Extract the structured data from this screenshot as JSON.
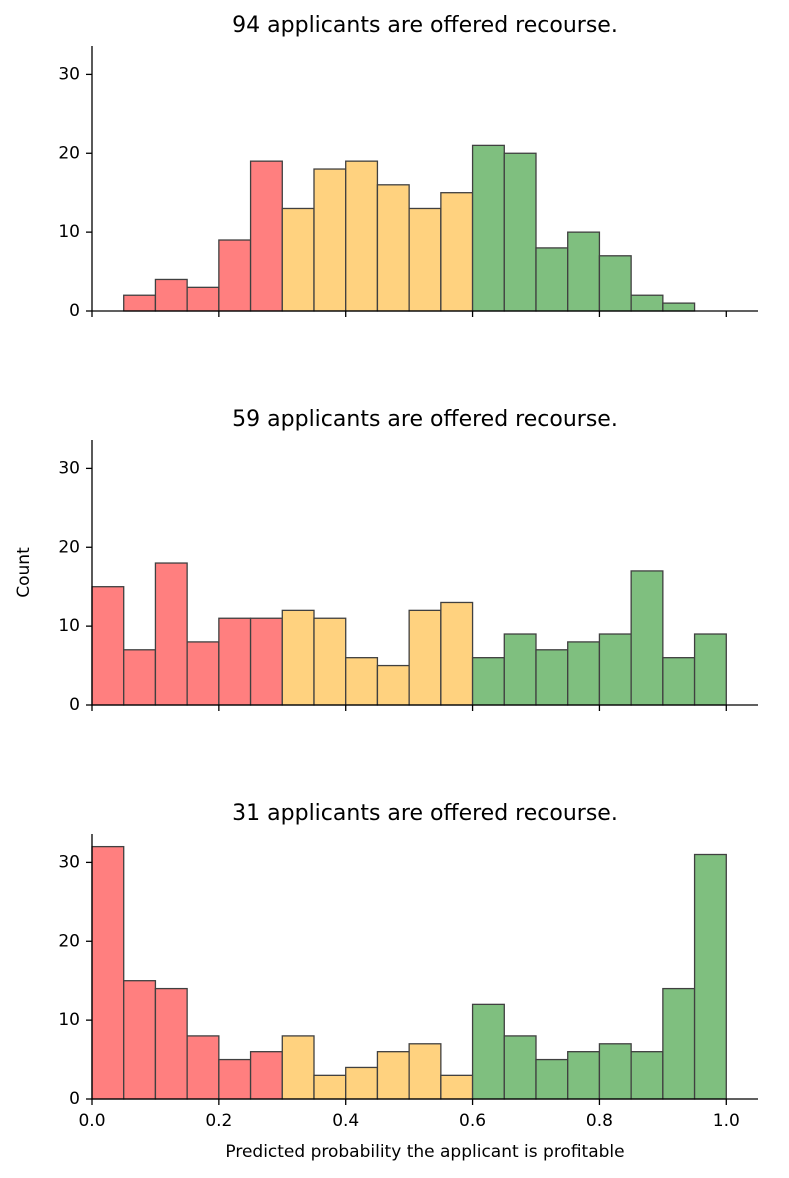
{
  "chart_data": [
    {
      "type": "histogram",
      "title": "94 applicants are offered recourse.",
      "bins": [
        0,
        0.05,
        0.1,
        0.15,
        0.2,
        0.25,
        0.3,
        0.35,
        0.4,
        0.45,
        0.5,
        0.55,
        0.6,
        0.65,
        0.7,
        0.75,
        0.8,
        0.85,
        0.9,
        0.95,
        1.0
      ],
      "values": [
        0,
        2,
        4,
        3,
        9,
        19,
        13,
        18,
        19,
        16,
        13,
        15,
        21,
        20,
        8,
        10,
        7,
        2,
        1,
        0
      ],
      "colors": [
        "#ff7f7f",
        "#ff7f7f",
        "#ff7f7f",
        "#ff7f7f",
        "#ff7f7f",
        "#ff7f7f",
        "#ffd27f",
        "#ffd27f",
        "#ffd27f",
        "#ffd27f",
        "#ffd27f",
        "#ffd27f",
        "#7fbf7f",
        "#7fbf7f",
        "#7fbf7f",
        "#7fbf7f",
        "#7fbf7f",
        "#7fbf7f",
        "#7fbf7f",
        "#7fbf7f"
      ],
      "xlim": [
        0,
        1.05
      ],
      "xticks": [
        {
          "value": 0,
          "label": "0.0"
        },
        {
          "value": 0.2,
          "label": "0.2"
        },
        {
          "value": 0.4,
          "label": "0.4"
        },
        {
          "value": 0.6,
          "label": "0.6"
        },
        {
          "value": 0.8,
          "label": "0.8"
        },
        {
          "value": 1.0,
          "label": "1.0"
        }
      ],
      "ylim": [
        0,
        33.6
      ],
      "yticks": [
        0,
        10,
        20,
        30
      ]
    },
    {
      "type": "histogram",
      "title": "59 applicants are offered recourse.",
      "ylabel": "Count",
      "bins": [
        0,
        0.05,
        0.1,
        0.15,
        0.2,
        0.25,
        0.3,
        0.35,
        0.4,
        0.45,
        0.5,
        0.55,
        0.6,
        0.65,
        0.7,
        0.75,
        0.8,
        0.85,
        0.9,
        0.95,
        1.0
      ],
      "values": [
        15,
        7,
        18,
        8,
        11,
        11,
        12,
        11,
        6,
        5,
        12,
        13,
        6,
        9,
        7,
        8,
        9,
        17,
        6,
        9
      ],
      "colors": [
        "#ff7f7f",
        "#ff7f7f",
        "#ff7f7f",
        "#ff7f7f",
        "#ff7f7f",
        "#ff7f7f",
        "#ffd27f",
        "#ffd27f",
        "#ffd27f",
        "#ffd27f",
        "#ffd27f",
        "#ffd27f",
        "#7fbf7f",
        "#7fbf7f",
        "#7fbf7f",
        "#7fbf7f",
        "#7fbf7f",
        "#7fbf7f",
        "#7fbf7f",
        "#7fbf7f"
      ],
      "xlim": [
        0,
        1.05
      ],
      "xticks": [
        {
          "value": 0,
          "label": "0.0"
        },
        {
          "value": 0.2,
          "label": "0.2"
        },
        {
          "value": 0.4,
          "label": "0.4"
        },
        {
          "value": 0.6,
          "label": "0.6"
        },
        {
          "value": 0.8,
          "label": "0.8"
        },
        {
          "value": 1.0,
          "label": "1.0"
        }
      ],
      "ylim": [
        0,
        33.6
      ],
      "yticks": [
        0,
        10,
        20,
        30
      ]
    },
    {
      "type": "histogram",
      "title": "31 applicants are offered recourse.",
      "xlabel": "Predicted probability the applicant is profitable",
      "show_xtick_labels": true,
      "bins": [
        0,
        0.05,
        0.1,
        0.15,
        0.2,
        0.25,
        0.3,
        0.35,
        0.4,
        0.45,
        0.5,
        0.55,
        0.6,
        0.65,
        0.7,
        0.75,
        0.8,
        0.85,
        0.9,
        0.95,
        1.0
      ],
      "values": [
        32,
        15,
        14,
        8,
        5,
        6,
        8,
        3,
        4,
        6,
        7,
        3,
        12,
        8,
        5,
        6,
        7,
        6,
        14,
        31
      ],
      "colors": [
        "#ff7f7f",
        "#ff7f7f",
        "#ff7f7f",
        "#ff7f7f",
        "#ff7f7f",
        "#ff7f7f",
        "#ffd27f",
        "#ffd27f",
        "#ffd27f",
        "#ffd27f",
        "#ffd27f",
        "#ffd27f",
        "#7fbf7f",
        "#7fbf7f",
        "#7fbf7f",
        "#7fbf7f",
        "#7fbf7f",
        "#7fbf7f",
        "#7fbf7f",
        "#7fbf7f"
      ],
      "xlim": [
        0,
        1.05
      ],
      "xticks": [
        {
          "value": 0,
          "label": "0.0"
        },
        {
          "value": 0.2,
          "label": "0.2"
        },
        {
          "value": 0.4,
          "label": "0.4"
        },
        {
          "value": 0.6,
          "label": "0.6"
        },
        {
          "value": 0.8,
          "label": "0.8"
        },
        {
          "value": 1.0,
          "label": "1.0"
        }
      ],
      "ylim": [
        0,
        33.6
      ],
      "yticks": [
        0,
        10,
        20,
        30
      ]
    }
  ]
}
